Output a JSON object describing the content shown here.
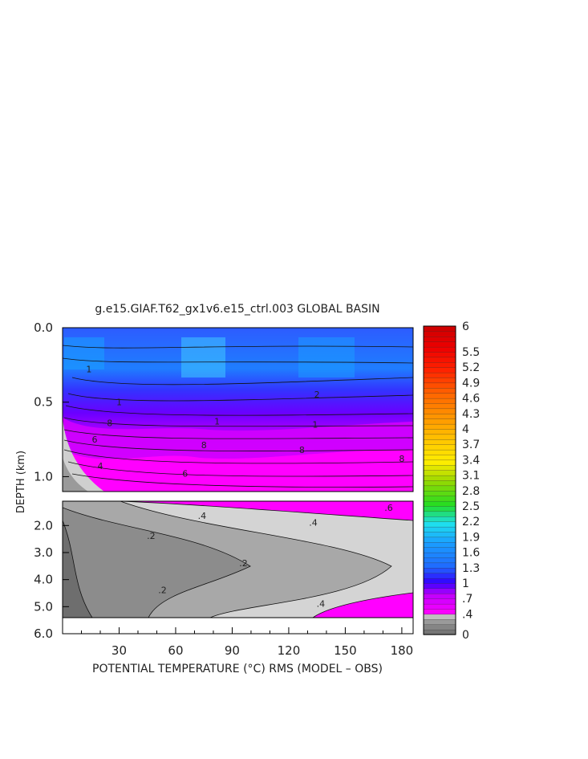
{
  "chart_data": {
    "type": "heatmap",
    "title": "g.e15.GIAF.T62_gx1v6.e15_ctrl.003 GLOBAL BASIN",
    "xlabel": "POTENTIAL TEMPERATURE (°C) RMS (MODEL – OBS)",
    "ylabel": "DEPTH (km)",
    "x_ticks": [
      "30",
      "60",
      "90",
      "120",
      "150",
      "180"
    ],
    "y_ticks_upper": [
      "0.0",
      "0.5",
      "1.0"
    ],
    "y_ticks_lower": [
      "2.0",
      "3.0",
      "4.0",
      "5.0",
      "6.0"
    ],
    "xlim": [
      0,
      186
    ],
    "ylim_upper": [
      0.0,
      1.1
    ],
    "ylim_lower": [
      1.1,
      6.0
    ],
    "colorbar_labels": [
      "6",
      "5.5",
      "5.2",
      "4.9",
      "4.6",
      "4.3",
      "4",
      "3.7",
      "3.4",
      "3.1",
      "2.8",
      "2.5",
      "2.2",
      "1.9",
      "1.6",
      "1.3",
      "1",
      ".7",
      ".4",
      "0"
    ],
    "colorbar_range": [
      0,
      6
    ],
    "contour_labels_upper": [
      {
        "x": 14,
        "y": 0.3,
        "label": "1"
      },
      {
        "x": 30,
        "y": 0.52,
        "label": "1"
      },
      {
        "x": 25,
        "y": 0.66,
        "label": "8"
      },
      {
        "x": 17,
        "y": 0.77,
        "label": "6"
      },
      {
        "x": 82,
        "y": 0.65,
        "label": "1"
      },
      {
        "x": 75,
        "y": 0.81,
        "label": "8"
      },
      {
        "x": 65,
        "y": 1.0,
        "label": "6"
      },
      {
        "x": 134,
        "y": 0.67,
        "label": "1"
      },
      {
        "x": 127,
        "y": 0.84,
        "label": "8"
      },
      {
        "x": 180,
        "y": 0.9,
        "label": "8"
      },
      {
        "x": 135,
        "y": 0.47,
        "label": "2"
      },
      {
        "x": 20,
        "y": 0.95,
        "label": "4"
      }
    ],
    "contour_labels_lower": [
      {
        "x": 74,
        "y": 1.75,
        "label": ".4"
      },
      {
        "x": 133,
        "y": 2.0,
        "label": ".4"
      },
      {
        "x": 173,
        "y": 1.45,
        "label": ".6"
      },
      {
        "x": 47,
        "y": 2.5,
        "label": ".2"
      },
      {
        "x": 96,
        "y": 3.5,
        "label": ".2"
      },
      {
        "x": 53,
        "y": 4.5,
        "label": ".2"
      },
      {
        "x": 137,
        "y": 5.0,
        "label": ".4"
      }
    ],
    "colors": {
      "bg_upper_deep": "#ff00ff",
      "bg_upper_mid": "#c000ff",
      "bg_upper_blue": "#3333ff",
      "bg_upper_surface": "#2d5cff",
      "lower_magenta": "#ff00ff",
      "lower_light": "#d4d4d4",
      "lower_mid": "#a8a8a8",
      "lower_dark": "#8c8c8c",
      "lower_darkest": "#6e6e6e"
    }
  }
}
